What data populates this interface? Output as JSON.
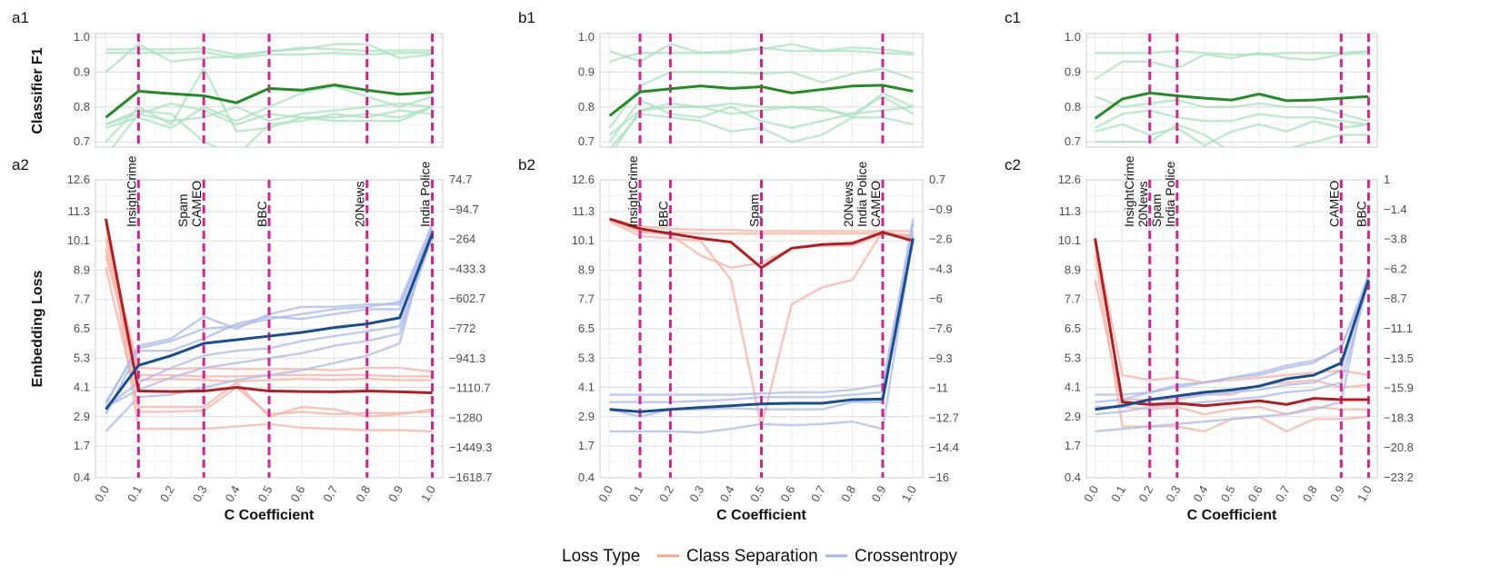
{
  "chart_data": {
    "type": "line",
    "x_axis_label": "C Coefficient",
    "x_ticks": [
      "0.0",
      "0.1",
      "0.2",
      "0.3",
      "0.4",
      "0.5",
      "0.6",
      "0.7",
      "0.8",
      "0.9",
      "1.0"
    ],
    "x_values": [
      0,
      0.1,
      0.2,
      0.3,
      0.4,
      0.5,
      0.6,
      0.7,
      0.8,
      0.9,
      1.0
    ],
    "top_ylabel": "Classifier F1",
    "bottom_ylabel": "Embedding Loss",
    "legend": {
      "title": "Loss Type",
      "entries": [
        {
          "name": "Class Separation",
          "color": "#f4a592"
        },
        {
          "name": "Crossentropy",
          "color": "#a4b3e6"
        }
      ]
    },
    "colors": {
      "f1_mean": "#238b23",
      "f1_faint": "#a9e1bf",
      "class_sep_mean": "#b11e23",
      "class_sep_faint": "#f8b4a8",
      "ce_mean": "#164e8f",
      "ce_faint": "#b0bcea",
      "vline": "#d4238f"
    },
    "top_yticks": [
      "0.7",
      "0.8",
      "0.9",
      "1.0"
    ],
    "top_ylim": [
      0.685,
      1.01
    ],
    "left_yticks": [
      "0.4",
      "1.7",
      "2.9",
      "4.1",
      "5.3",
      "6.5",
      "7.7",
      "8.9",
      "10.1",
      "11.3",
      "12.6"
    ],
    "left_ylim": [
      0.4,
      12.6
    ],
    "panels": [
      {
        "top_label": "a1",
        "bottom_label": "a2",
        "right_yticks": [
          "74.7",
          "−94.7",
          "−264",
          "−433.3",
          "−602.7",
          "−772",
          "−941.3",
          "−1110.7",
          "−1280",
          "−1449.3",
          "−1618.7"
        ],
        "vlines": [
          {
            "x": 0.1,
            "labels": [
              "InsightCrime"
            ]
          },
          {
            "x": 0.3,
            "labels": [
              "Spam",
              "CAMEO"
            ]
          },
          {
            "x": 0.5,
            "labels": [
              "BBC"
            ]
          },
          {
            "x": 0.8,
            "labels": [
              "20News"
            ]
          },
          {
            "x": 1.0,
            "labels": [
              "India Police"
            ]
          }
        ],
        "f1_mean": [
          0.77,
          0.845,
          0.838,
          0.832,
          0.812,
          0.853,
          0.848,
          0.863,
          0.848,
          0.836,
          0.842
        ],
        "f1_faint": [
          [
            0.965,
            0.965,
            0.965,
            0.968,
            0.95,
            0.958,
            0.97,
            0.965,
            0.96,
            0.962,
            0.962
          ],
          [
            0.9,
            0.98,
            0.93,
            0.94,
            0.945,
            0.96,
            0.965,
            0.98,
            0.98,
            0.94,
            0.95
          ],
          [
            0.955,
            0.955,
            0.955,
            0.958,
            0.94,
            0.95,
            0.95,
            0.955,
            0.95,
            0.955,
            0.955
          ],
          [
            0.75,
            0.78,
            0.81,
            0.79,
            0.75,
            0.78,
            0.77,
            0.77,
            0.78,
            0.77,
            0.8
          ],
          [
            0.74,
            0.77,
            0.74,
            0.8,
            0.76,
            0.8,
            0.84,
            0.86,
            0.83,
            0.8,
            0.83
          ],
          [
            0.66,
            0.78,
            0.76,
            0.77,
            0.8,
            0.76,
            0.78,
            0.79,
            0.8,
            0.81,
            0.8
          ],
          [
            0.7,
            0.8,
            0.75,
            0.91,
            0.73,
            0.74,
            0.77,
            0.76,
            0.76,
            0.76,
            0.8
          ],
          [
            0.75,
            0.79,
            0.78,
            0.7,
            0.66,
            0.75,
            0.76,
            0.78,
            0.77,
            0.79,
            0.78
          ]
        ],
        "cs_mean": [
          11.0,
          3.95,
          3.93,
          3.95,
          4.1,
          3.95,
          3.93,
          3.92,
          3.95,
          3.92,
          3.88
        ],
        "cs_faint": [
          [
            10.2,
            4.9,
            4.85,
            4.9,
            4.85,
            4.85,
            4.85,
            4.8,
            4.9,
            4.9,
            4.75
          ],
          [
            9.8,
            4.6,
            4.6,
            4.55,
            4.55,
            4.6,
            4.6,
            4.6,
            4.6,
            4.55,
            4.55
          ],
          [
            9.5,
            4.4,
            4.45,
            4.4,
            4.35,
            4.4,
            4.45,
            4.4,
            4.45,
            4.4,
            4.4
          ],
          [
            11.0,
            3.1,
            3.1,
            3.15,
            4.1,
            3.0,
            3.1,
            3.0,
            3.05,
            3.05,
            3.1
          ],
          [
            10.8,
            2.4,
            2.4,
            2.4,
            2.5,
            2.6,
            2.45,
            2.4,
            2.35,
            2.35,
            2.3
          ],
          [
            9.0,
            3.3,
            3.3,
            3.3,
            4.3,
            2.9,
            3.3,
            3.2,
            2.9,
            3.0,
            3.2
          ]
        ],
        "ce_mean": [
          3.2,
          5.0,
          5.4,
          5.9,
          6.05,
          6.2,
          6.35,
          6.55,
          6.7,
          6.95,
          10.4
        ],
        "ce_faint": [
          [
            3.5,
            5.7,
            6.0,
            6.5,
            6.6,
            6.9,
            7.1,
            7.3,
            7.4,
            7.6,
            10.8
          ],
          [
            3.4,
            5.8,
            6.1,
            7.0,
            6.5,
            7.1,
            7.4,
            7.4,
            7.5,
            7.5,
            10.5
          ],
          [
            3.0,
            5.6,
            5.6,
            6.1,
            6.7,
            7.0,
            6.9,
            7.1,
            7.3,
            7.3,
            10.6
          ],
          [
            3.3,
            4.3,
            4.9,
            5.4,
            5.6,
            5.7,
            6.0,
            6.2,
            6.4,
            6.6,
            10.2
          ],
          [
            3.3,
            4.0,
            4.5,
            4.9,
            5.1,
            5.3,
            5.5,
            5.8,
            6.0,
            6.3,
            10.4
          ],
          [
            2.3,
            3.7,
            3.8,
            4.1,
            4.4,
            4.6,
            4.8,
            5.1,
            5.4,
            5.9,
            10.9
          ]
        ]
      },
      {
        "top_label": "b1",
        "bottom_label": "b2",
        "right_yticks": [
          "0.7",
          "−0.9",
          "−2.6",
          "−4.3",
          "−6",
          "−7.6",
          "−9.3",
          "−11",
          "−12.7",
          "−14.4",
          "−16"
        ],
        "vlines": [
          {
            "x": 0.1,
            "labels": [
              "InsightCrime"
            ]
          },
          {
            "x": 0.2,
            "labels": [
              "BBC"
            ]
          },
          {
            "x": 0.5,
            "labels": [
              "Spam"
            ]
          },
          {
            "x": 0.9,
            "labels": [
              "20News",
              "India Police",
              "CAMEO"
            ]
          }
        ],
        "f1_mean": [
          0.775,
          0.843,
          0.852,
          0.86,
          0.853,
          0.858,
          0.84,
          0.85,
          0.86,
          0.862,
          0.845
        ],
        "f1_faint": [
          [
            0.93,
            0.955,
            0.955,
            0.955,
            0.96,
            0.965,
            0.98,
            0.96,
            0.96,
            0.955,
            0.95
          ],
          [
            0.96,
            0.93,
            0.98,
            0.955,
            0.955,
            0.97,
            0.96,
            0.96,
            0.97,
            0.965,
            0.955
          ],
          [
            0.74,
            0.86,
            0.9,
            0.9,
            0.9,
            0.895,
            0.9,
            0.87,
            0.895,
            0.91,
            0.88
          ],
          [
            0.72,
            0.79,
            0.8,
            0.8,
            0.78,
            0.79,
            0.8,
            0.79,
            0.78,
            0.79,
            0.8
          ],
          [
            0.7,
            0.82,
            0.78,
            0.77,
            0.8,
            0.76,
            0.74,
            0.76,
            0.78,
            0.83,
            0.78
          ],
          [
            0.68,
            0.78,
            0.77,
            0.76,
            0.73,
            0.74,
            0.7,
            0.72,
            0.77,
            0.77,
            0.75
          ],
          [
            0.66,
            0.79,
            0.81,
            0.8,
            0.81,
            0.8,
            0.8,
            0.8,
            0.77,
            0.84,
            0.8
          ]
        ],
        "cs_mean": [
          11.0,
          10.6,
          10.4,
          10.2,
          10.05,
          9.0,
          9.8,
          9.95,
          10.0,
          10.45,
          10.1
        ],
        "cs_faint": [
          [
            11.0,
            10.7,
            10.6,
            10.55,
            10.55,
            10.5,
            10.5,
            10.5,
            10.5,
            10.5,
            10.5
          ],
          [
            11.0,
            10.45,
            10.45,
            10.4,
            10.4,
            10.4,
            10.4,
            10.4,
            10.4,
            10.4,
            10.35
          ],
          [
            10.9,
            10.3,
            10.2,
            10.1,
            8.5,
            2.5,
            7.5,
            8.2,
            8.5,
            10.5,
            10.2
          ],
          [
            11.0,
            10.5,
            10.35,
            9.5,
            9.0,
            9.2,
            9.8,
            9.9,
            9.9,
            10.4,
            10.3
          ]
        ],
        "ce_mean": [
          3.2,
          3.1,
          3.2,
          3.28,
          3.35,
          3.42,
          3.45,
          3.45,
          3.6,
          3.62,
          10.2
        ],
        "ce_faint": [
          [
            3.8,
            3.8,
            3.8,
            3.8,
            3.8,
            3.85,
            3.9,
            3.9,
            4.0,
            4.2,
            10.8
          ],
          [
            3.5,
            3.5,
            3.5,
            3.55,
            3.6,
            3.7,
            3.7,
            3.7,
            3.8,
            3.9,
            11.0
          ],
          [
            3.2,
            2.9,
            3.2,
            3.2,
            3.25,
            3.2,
            3.2,
            3.2,
            3.5,
            3.5,
            10.5
          ],
          [
            2.3,
            2.3,
            2.3,
            2.25,
            2.4,
            2.6,
            2.55,
            2.6,
            2.7,
            2.4,
            10.3
          ]
        ]
      },
      {
        "top_label": "c1",
        "bottom_label": "c2",
        "right_yticks": [
          "1",
          "−1.4",
          "−3.8",
          "−6.2",
          "−8.7",
          "−11.1",
          "−13.5",
          "−15.9",
          "−18.3",
          "−20.8",
          "−23.2"
        ],
        "vlines": [
          {
            "x": 0.2,
            "labels": [
              "InsightCrime",
              "20News"
            ]
          },
          {
            "x": 0.3,
            "labels": [
              "Spam",
              "India Police"
            ]
          },
          {
            "x": 0.9,
            "labels": [
              "CAMEO"
            ]
          },
          {
            "x": 1.0,
            "labels": [
              "BBC"
            ]
          }
        ],
        "f1_mean": [
          0.767,
          0.823,
          0.84,
          0.832,
          0.825,
          0.82,
          0.837,
          0.818,
          0.82,
          0.825,
          0.83
        ],
        "f1_faint": [
          [
            0.955,
            0.955,
            0.955,
            0.96,
            0.955,
            0.95,
            0.95,
            0.955,
            0.955,
            0.955,
            0.96
          ],
          [
            0.88,
            0.93,
            0.93,
            0.91,
            0.95,
            0.94,
            0.955,
            0.94,
            0.935,
            0.95,
            0.955
          ],
          [
            0.83,
            0.8,
            0.81,
            0.82,
            0.8,
            0.8,
            0.81,
            0.8,
            0.8,
            0.78,
            0.76
          ],
          [
            0.74,
            0.78,
            0.79,
            0.77,
            0.76,
            0.76,
            0.78,
            0.77,
            0.77,
            0.76,
            0.75
          ],
          [
            0.73,
            0.75,
            0.72,
            0.74,
            0.69,
            0.73,
            0.75,
            0.73,
            0.76,
            0.74,
            0.75
          ],
          [
            0.7,
            0.7,
            0.7,
            0.75,
            0.72,
            0.67,
            0.67,
            0.68,
            0.7,
            0.72,
            0.72
          ]
        ],
        "cs_mean": [
          10.2,
          3.5,
          3.4,
          3.45,
          3.35,
          3.45,
          3.55,
          3.4,
          3.65,
          3.6,
          3.6
        ],
        "cs_faint": [
          [
            10.2,
            4.6,
            4.4,
            4.5,
            4.3,
            4.4,
            4.5,
            4.6,
            4.7,
            4.8,
            4.6
          ],
          [
            10.0,
            3.6,
            3.6,
            3.6,
            3.8,
            3.8,
            4.2,
            4.3,
            4.4,
            4.1,
            4.2
          ],
          [
            9.5,
            2.5,
            2.5,
            2.5,
            2.3,
            2.8,
            2.9,
            2.3,
            2.8,
            2.8,
            2.9
          ],
          [
            8.5,
            3.3,
            3.2,
            3.3,
            3.0,
            3.2,
            3.3,
            3.0,
            3.3,
            3.2,
            3.2
          ]
        ],
        "ce_mean": [
          3.2,
          3.35,
          3.6,
          3.75,
          3.9,
          4.0,
          4.15,
          4.45,
          4.6,
          5.1,
          8.5
        ],
        "ce_faint": [
          [
            3.5,
            3.6,
            3.9,
            4.1,
            4.3,
            4.5,
            4.7,
            5.0,
            5.2,
            5.7,
            8.7
          ],
          [
            3.8,
            3.8,
            3.9,
            4.2,
            4.3,
            4.5,
            4.6,
            4.9,
            5.1,
            5.8,
            8.3
          ],
          [
            3.3,
            3.3,
            3.6,
            3.7,
            3.8,
            3.9,
            4.0,
            4.2,
            4.3,
            4.8,
            8.6
          ],
          [
            3.0,
            3.1,
            3.3,
            3.4,
            3.5,
            3.6,
            3.7,
            3.9,
            4.0,
            4.3,
            8.4
          ],
          [
            2.3,
            2.4,
            2.5,
            2.6,
            2.7,
            2.8,
            2.9,
            3.0,
            3.2,
            3.5,
            8.9
          ]
        ]
      }
    ]
  }
}
